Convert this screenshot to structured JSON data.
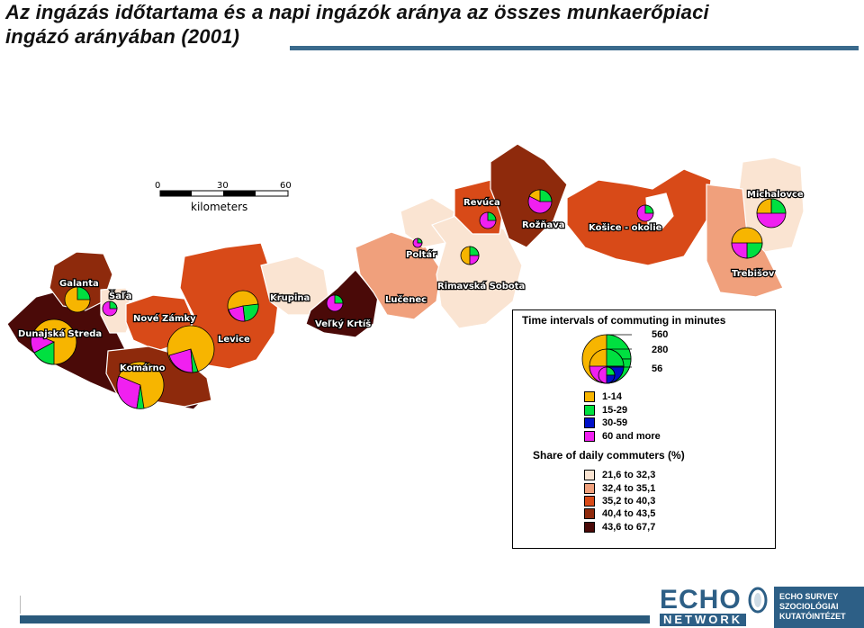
{
  "title": {
    "line1": "Az ingázás időtartama és a napi ingázók aránya az összes munkaerőpiaci",
    "line2": "ingázó arányában (2001)"
  },
  "scale": {
    "ticks": [
      "0",
      "30",
      "60"
    ],
    "unit": "kilometers"
  },
  "districts": [
    {
      "name": "Galanta"
    },
    {
      "name": "Šaľa"
    },
    {
      "name": "Dunajská Streda"
    },
    {
      "name": "Nové Zámky"
    },
    {
      "name": "Komárno"
    },
    {
      "name": "Levice"
    },
    {
      "name": "Krupina"
    },
    {
      "name": "Veľký Krtíš"
    },
    {
      "name": "Lučenec"
    },
    {
      "name": "Poltár"
    },
    {
      "name": "Revúca"
    },
    {
      "name": "Rimavská Sobota"
    },
    {
      "name": "Rožňava"
    },
    {
      "name": "Košice - okolie"
    },
    {
      "name": "Michalovce"
    },
    {
      "name": "Trebišov"
    }
  ],
  "legend": {
    "size_title": "Time intervals of commuting in minutes",
    "sizes": [
      "560",
      "280",
      "56"
    ],
    "intervals": [
      {
        "label": "1-14",
        "color": "#f7b500"
      },
      {
        "label": "15-29",
        "color": "#00e040"
      },
      {
        "label": "30-59",
        "color": "#0010c8"
      },
      {
        "label": "60 and more",
        "color": "#f020f0"
      }
    ],
    "share_title": "Share of daily commuters (%)",
    "classes": [
      {
        "label": "21,6 to 32,3",
        "color": "#fae4d2"
      },
      {
        "label": "32,4 to 35,1",
        "color": "#f0a07c"
      },
      {
        "label": "35,2 to 40,3",
        "color": "#d84a18"
      },
      {
        "label": "40,4 to 43,5",
        "color": "#8e2a0c"
      },
      {
        "label": "43,6 to 67,7",
        "color": "#4a0a08"
      }
    ]
  },
  "logo": {
    "echo": "ECHO",
    "network": "NETWORK",
    "box": [
      "ECHO SURVEY",
      "SZOCIOLÓGIAI",
      "KUTATÓINTÉZET"
    ]
  }
}
